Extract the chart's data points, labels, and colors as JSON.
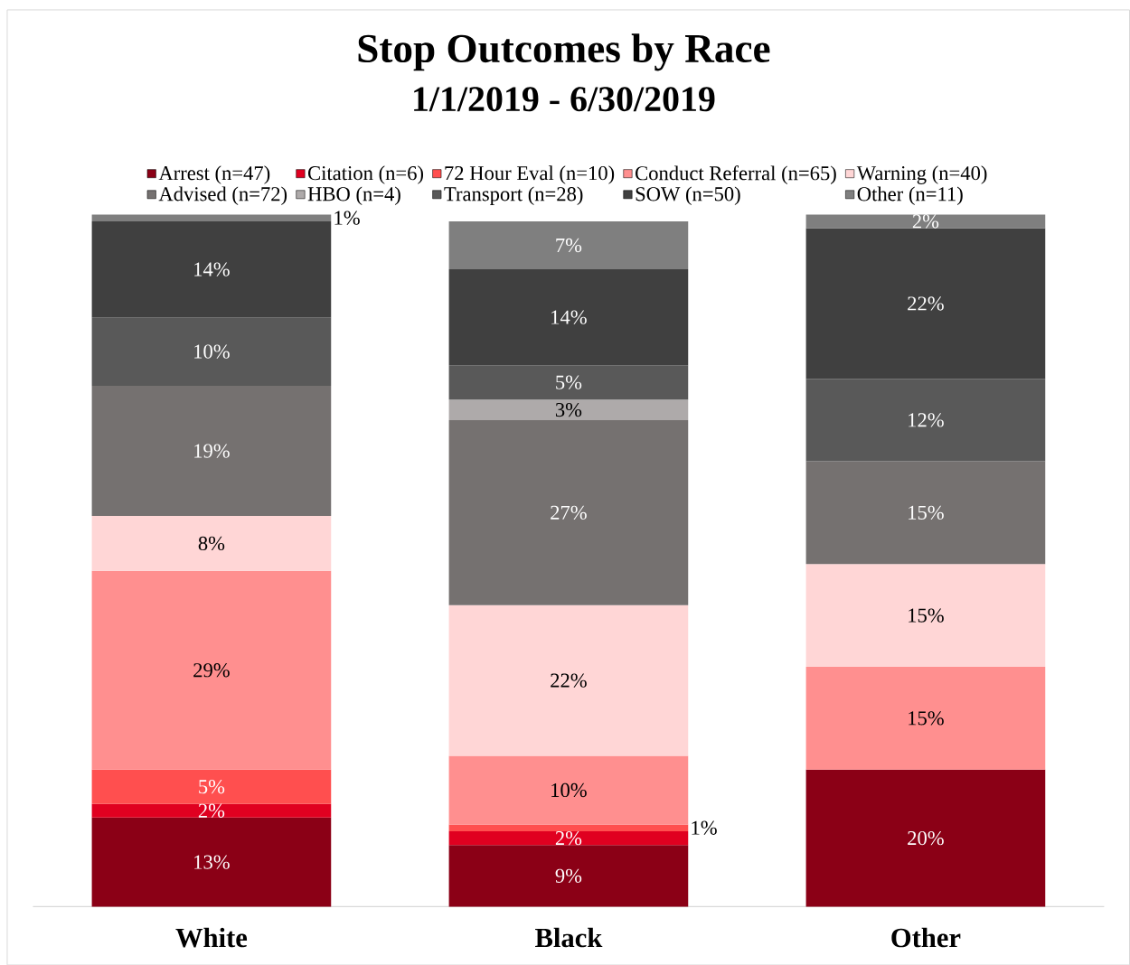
{
  "chart_data": {
    "type": "bar",
    "stacked": true,
    "title": "Stop Outcomes by Race",
    "subtitle": "1/1/2019 - 6/30/2019",
    "categories": [
      "White",
      "Black",
      "Other"
    ],
    "legend": "top",
    "series": [
      {
        "name": "Arrest (n=47)",
        "color": "#8b0016",
        "values": [
          13,
          9,
          20
        ],
        "value_labels": [
          "13%",
          "9%",
          "20%"
        ]
      },
      {
        "name": "Citation (n=6)",
        "color": "#e00020",
        "values": [
          2,
          2,
          null
        ],
        "value_labels": [
          "2%",
          "2%",
          null
        ]
      },
      {
        "name": "72 Hour Eval (n=10)",
        "color": "#ff4f4f",
        "values": [
          5,
          1,
          null
        ],
        "value_labels": [
          "5%",
          "1%",
          null
        ]
      },
      {
        "name": "Conduct Referral (n=65)",
        "color": "#ff8f8f",
        "values": [
          29,
          10,
          15
        ],
        "value_labels": [
          "29%",
          "10%",
          "15%"
        ]
      },
      {
        "name": "Warning (n=40)",
        "color": "#ffd6d6",
        "values": [
          8,
          22,
          15
        ],
        "value_labels": [
          "8%",
          "22%",
          "15%"
        ]
      },
      {
        "name": "Advised (n=72)",
        "color": "#757170",
        "values": [
          19,
          27,
          15
        ],
        "value_labels": [
          "19%",
          "27%",
          "15%"
        ]
      },
      {
        "name": "HBO (n=4)",
        "color": "#aeaaaa",
        "values": [
          null,
          3,
          null
        ],
        "value_labels": [
          null,
          "3%",
          null
        ]
      },
      {
        "name": "Transport (n=28)",
        "color": "#595959",
        "values": [
          10,
          5,
          12
        ],
        "value_labels": [
          "10%",
          "5%",
          "12%"
        ]
      },
      {
        "name": "SOW (n=50)",
        "color": "#404040",
        "values": [
          14,
          14,
          22
        ],
        "value_labels": [
          "14%",
          "14%",
          "22%"
        ]
      },
      {
        "name": "Other (n=11)",
        "color": "#7f7f7f",
        "values": [
          1,
          7,
          2
        ],
        "value_labels": [
          "1%",
          "7%",
          "2%"
        ]
      }
    ]
  }
}
